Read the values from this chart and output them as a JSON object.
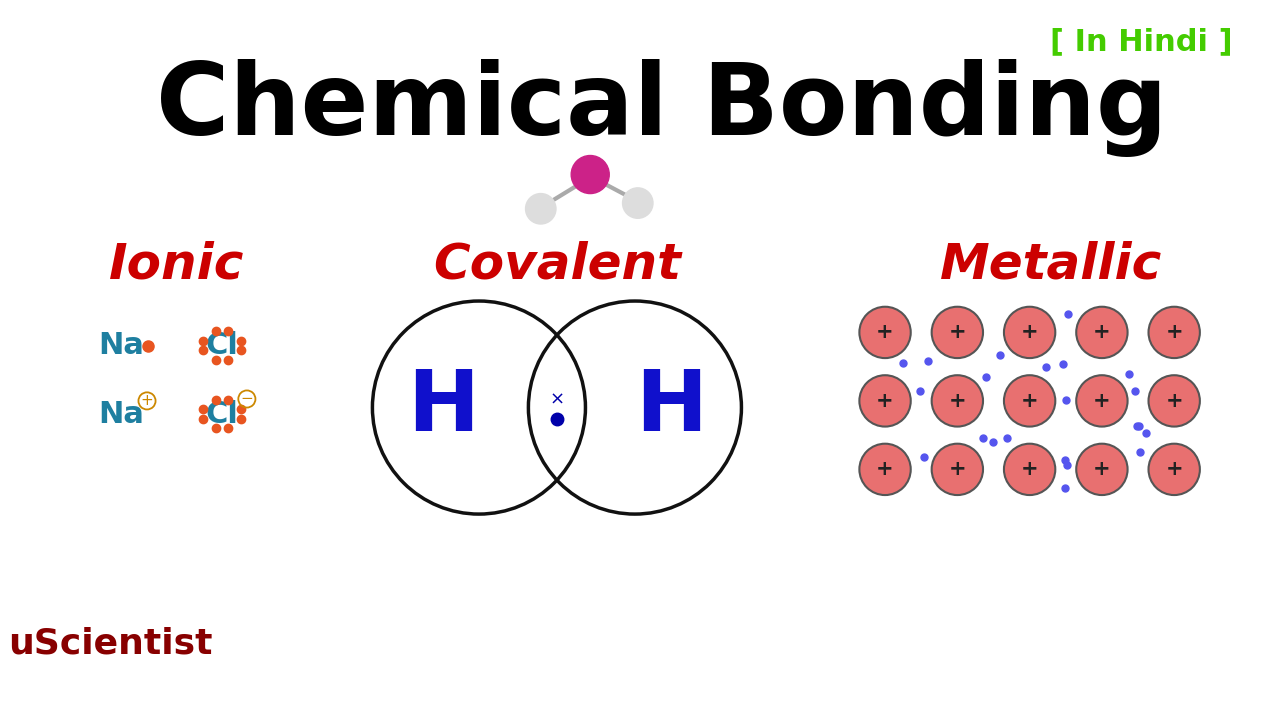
{
  "title": "Chemical Bonding",
  "title_color": "#000000",
  "title_fontsize": 72,
  "hindi_text": "[ In Hindi ]",
  "hindi_color": "#44CC00",
  "hindi_fontsize": 22,
  "ionic_label": "Ionic",
  "ionic_color": "#CC0000",
  "covalent_label": "Covalent",
  "covalent_color": "#CC0000",
  "metallic_label": "Metallic",
  "metallic_color": "#CC0000",
  "section_label_fontsize": 36,
  "na_cl_color": "#1E7FA0",
  "dot_color": "#E85520",
  "bg_color": "#FFFFFF",
  "h_color": "#1010CC",
  "circle_color": "#111111",
  "electron_color": "#5555EE",
  "watermark": "uScientist",
  "watermark_color": "#880000",
  "watermark_fontsize": 26
}
